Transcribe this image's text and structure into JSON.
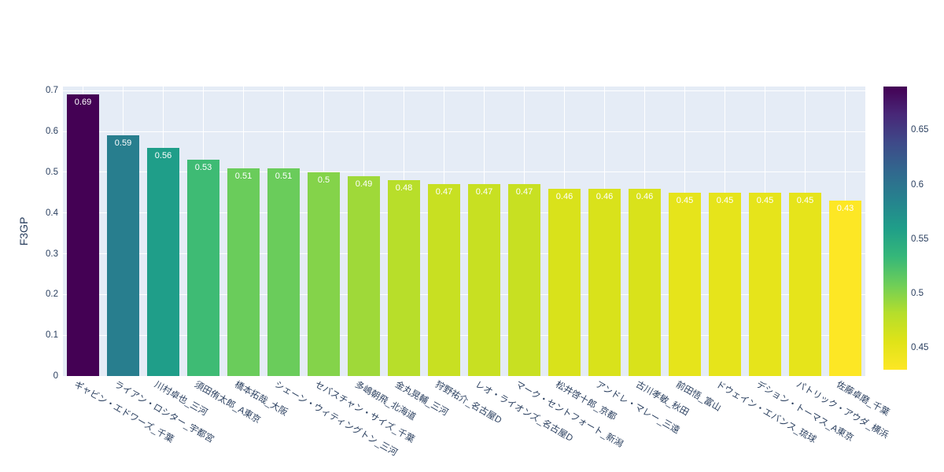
{
  "chart_data": {
    "type": "bar",
    "title": "",
    "xlabel": "",
    "ylabel": "F3GP",
    "ylim": [
      0,
      0.71
    ],
    "grid": true,
    "legend_position": "colorbar-right",
    "colorscale": "viridis_r",
    "color_range": [
      0.43,
      0.69
    ],
    "colors": {
      "plot_bg": "#e5ecf6",
      "paper_bg": "#ffffff",
      "grid": "#ffffff",
      "text": "#2a3f5f",
      "bar_label": "#ffffff"
    },
    "categories": [
      "ギャビン・エドワーズ_千葉",
      "ライアン・ロシター_宇都宮",
      "川村卓也_三河",
      "須田侑太郎_A東京",
      "橋本拓哉_大阪",
      "シェーン・ウィティングトン_三河",
      "セバスチャン・サイズ_千葉",
      "多嶋朝飛_北海道",
      "金丸晃輔_三河",
      "狩野祐介_名古屋D",
      "レオ・ライオンズ_名古屋D",
      "マーク・セントフォート_新潟",
      "松井啓十郎_京都",
      "アンドレ・マレー_三遠",
      "古川孝敏_秋田",
      "前田悟_富山",
      "ドウェイン・エバンス_琉球",
      "デション・トーマス_A東京",
      "パトリック・アウダ_横浜",
      "佐藤卓磨_千葉"
    ],
    "values": [
      0.69,
      0.59,
      0.56,
      0.53,
      0.51,
      0.51,
      0.5,
      0.49,
      0.48,
      0.47,
      0.47,
      0.47,
      0.46,
      0.46,
      0.46,
      0.45,
      0.45,
      0.45,
      0.45,
      0.43
    ],
    "bar_labels": [
      "0.69",
      "0.59",
      "0.56",
      "0.53",
      "0.51",
      "0.51",
      "0.5",
      "0.49",
      "0.48",
      "0.47",
      "0.47",
      "0.47",
      "0.46",
      "0.46",
      "0.46",
      "0.45",
      "0.45",
      "0.45",
      "0.45",
      "0.43"
    ],
    "ytick_values": [
      0,
      0.1,
      0.2,
      0.3,
      0.4,
      0.5,
      0.6,
      0.7
    ],
    "ytick_labels": [
      "0",
      "0.1",
      "0.2",
      "0.3",
      "0.4",
      "0.5",
      "0.6",
      "0.7"
    ],
    "colorbar": {
      "tick_values": [
        0.45,
        0.5,
        0.55,
        0.6,
        0.65
      ],
      "tick_labels": [
        "0.45",
        "0.5",
        "0.55",
        "0.6",
        "0.65"
      ]
    }
  }
}
